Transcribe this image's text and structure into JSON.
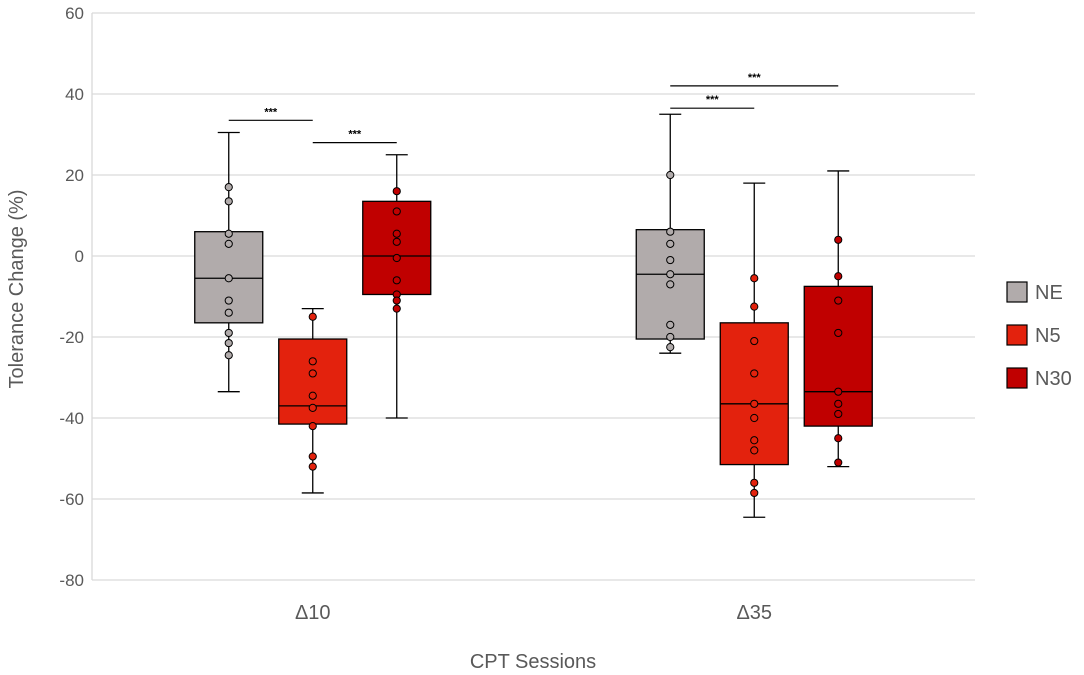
{
  "chart_data": {
    "type": "boxplot",
    "xlabel": "CPT Sessions",
    "ylabel": "Tolerance Change (%)",
    "ylim": [
      -80,
      60
    ],
    "yticks": [
      60,
      40,
      20,
      0,
      -20,
      -40,
      -60,
      -80
    ],
    "ytick_labels": [
      "60",
      "40",
      "20",
      "0",
      "-20",
      "-40",
      "-60",
      "-80"
    ],
    "grid": true,
    "legend_position": "right",
    "categories": [
      "Δ10",
      "Δ35"
    ],
    "series": [
      {
        "name": "NE",
        "color": "#b1abab",
        "boxes": [
          {
            "min": -33.5,
            "q1": -16.5,
            "median": -5.5,
            "q3": 6,
            "max": 30.5,
            "points": [
              17,
              13.5,
              5.5,
              3,
              -5.5,
              -11,
              -14,
              -19,
              -21.5,
              -24.5
            ]
          },
          {
            "min": -24,
            "q1": -20.5,
            "median": -4.5,
            "q3": 6.5,
            "max": 35,
            "points": [
              20,
              6,
              3,
              -1,
              -4.5,
              -7,
              -17,
              -20,
              -22.5
            ]
          }
        ]
      },
      {
        "name": "N5",
        "color": "#e3220d",
        "boxes": [
          {
            "min": -58.5,
            "q1": -41.5,
            "median": -37,
            "q3": -20.5,
            "max": -13,
            "points": [
              -15,
              -26,
              -29,
              -34.5,
              -37.5,
              -42,
              -49.5,
              -52
            ]
          },
          {
            "min": -64.5,
            "q1": -51.5,
            "median": -36.5,
            "q3": -16.5,
            "max": 18,
            "points": [
              -5.5,
              -12.5,
              -21,
              -29,
              -36.5,
              -40,
              -45.5,
              -48,
              -56,
              -58.5
            ]
          }
        ]
      },
      {
        "name": "N30",
        "color": "#c00000",
        "boxes": [
          {
            "min": -40,
            "q1": -9.5,
            "median": 0,
            "q3": 13.5,
            "max": 25,
            "points": [
              16,
              11,
              5.5,
              3.5,
              -0.5,
              -6,
              -9.5,
              -11,
              -13
            ]
          },
          {
            "min": -52,
            "q1": -42,
            "median": -33.5,
            "q3": -7.5,
            "max": 21,
            "points": [
              4,
              -5,
              -11,
              -19,
              -33.5,
              -36.5,
              -39,
              -45,
              -51
            ]
          }
        ]
      }
    ],
    "annotations": [
      {
        "text": "***",
        "category": 0,
        "from": "NE",
        "to": "N5",
        "y": 33.5
      },
      {
        "text": "***",
        "category": 0,
        "from": "N5",
        "to": "N30",
        "y": 28
      },
      {
        "text": "***",
        "category": 1,
        "from": "NE",
        "to": "N5",
        "y": 36.5
      },
      {
        "text": "***",
        "category": 1,
        "from": "NE",
        "to": "N30",
        "y": 42
      }
    ]
  }
}
